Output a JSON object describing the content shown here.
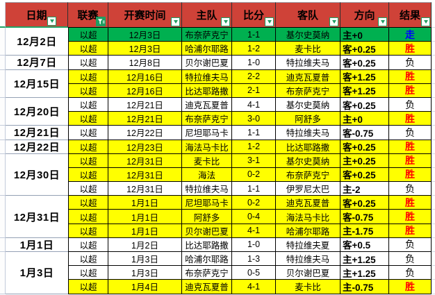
{
  "colors": {
    "header_bg": "#cf4238",
    "header_text": "#000000",
    "header_underline": "#21a366",
    "row_green": "#00b050",
    "row_yellow": "#ffff00",
    "row_white": "#ffffff",
    "win_red": "#ff0000",
    "push_blue": "#0000ff",
    "lose_black": "#000000",
    "filter_green": "#1f9e62",
    "grid_black": "#000000",
    "date_sep": "#93a0b4",
    "gutter_line": "#c3cbda"
  },
  "icons": {
    "filter_dropdown": "green down-triangle in white box",
    "filter_funnel": "white funnel with lines on green box (active filter)"
  },
  "header": {
    "columns": [
      {
        "label": "日期",
        "filter": "dropdown"
      },
      {
        "label": "联赛",
        "filter": "funnel"
      },
      {
        "label": "开赛时间",
        "filter": "dropdown"
      },
      {
        "label": "主队",
        "filter": "dropdown"
      },
      {
        "label": "比分",
        "filter": "dropdown"
      },
      {
        "label": "客队",
        "filter": "dropdown"
      },
      {
        "label": "方向",
        "filter": "dropdown"
      },
      {
        "label": "结果",
        "filter": "dropdown"
      }
    ]
  },
  "date_groups": [
    {
      "date": "12月2日",
      "span": 2
    },
    {
      "date": "12月7日",
      "span": 1
    },
    {
      "date": "12月15日",
      "span": 2
    },
    {
      "date": "12月20日",
      "span": 2
    },
    {
      "date": "12月21日",
      "span": 1
    },
    {
      "date": "12月22日",
      "span": 1
    },
    {
      "date": "12月30日",
      "span": 3
    },
    {
      "date": "12月31日",
      "span": 3
    },
    {
      "date": "1月1日",
      "span": 1
    },
    {
      "date": "1月3日",
      "span": 3
    }
  ],
  "rows": [
    {
      "bg": "green",
      "league": "以超",
      "time": "12月3日",
      "home": "布奈萨克宁",
      "score": "1-1",
      "away": "基尔史莫纳",
      "direction": "主+0",
      "result": "走",
      "result_type": "push"
    },
    {
      "bg": "yellow",
      "league": "以超",
      "time": "12月3日",
      "home": "哈浦尔耶路",
      "score": "1-2",
      "away": "麦卡比",
      "direction": "客+0.25",
      "result": "胜",
      "result_type": "win"
    },
    {
      "bg": "white",
      "league": "以超",
      "time": "12月8日",
      "home": "贝尔谢巴夏",
      "score": "1-0",
      "away": "特拉维夫马",
      "direction": "客+0.25",
      "result": "负",
      "result_type": "lose"
    },
    {
      "bg": "yellow",
      "league": "以超",
      "time": "12月16日",
      "home": "特拉维夫马",
      "score": "2-2",
      "away": "迪克瓦夏普",
      "direction": "客+1.25",
      "result": "胜",
      "result_type": "win"
    },
    {
      "bg": "yellow",
      "league": "以超",
      "time": "12月16日",
      "home": "比达耶路撒",
      "score": "2-1",
      "away": "布奈萨克宁",
      "direction": "客+1.25",
      "result": "胜",
      "result_type": "win"
    },
    {
      "bg": "white",
      "league": "以超",
      "time": "12月21日",
      "home": "迪克瓦夏普",
      "score": "4-1",
      "away": "基尔史莫纳",
      "direction": "客+0.25",
      "result": "负",
      "result_type": "lose"
    },
    {
      "bg": "yellow",
      "league": "以超",
      "time": "12月21日",
      "home": "布奈萨克宁",
      "score": "3-0",
      "away": "阿舒多",
      "direction": "主+0",
      "result": "胜",
      "result_type": "win"
    },
    {
      "bg": "white",
      "league": "以超",
      "time": "12月22日",
      "home": "尼坦耶马卡",
      "score": "1-1",
      "away": "特拉维夫马",
      "direction": "客-0.75",
      "result": "负",
      "result_type": "lose"
    },
    {
      "bg": "yellow",
      "league": "以超",
      "time": "12月23日",
      "home": "海法马卡比",
      "score": "1-2",
      "away": "比达耶路撒",
      "direction": "客+0.25",
      "result": "胜",
      "result_type": "win"
    },
    {
      "bg": "yellow",
      "league": "以超",
      "time": "12月31日",
      "home": "麦卡比",
      "score": "3-1",
      "away": "基尔史莫纳",
      "direction": "主+0.25",
      "result": "胜",
      "result_type": "win"
    },
    {
      "bg": "yellow",
      "league": "以超",
      "time": "12月31日",
      "home": "海法",
      "score": "0-2",
      "away": "布奈萨克宁",
      "direction": "客+0.25",
      "result": "胜",
      "result_type": "win"
    },
    {
      "bg": "white",
      "league": "以超",
      "time": "12月31日",
      "home": "特拉维夫马",
      "score": "1-1",
      "away": "伊罗尼太巴",
      "direction": "主-2",
      "result": "负",
      "result_type": "lose"
    },
    {
      "bg": "yellow",
      "league": "以超",
      "time": "1月1日",
      "home": "尼坦耶马卡",
      "score": "0-2",
      "away": "迪克瓦夏普",
      "direction": "客+0.25",
      "result": "胜",
      "result_type": "win"
    },
    {
      "bg": "yellow",
      "league": "以超",
      "time": "1月1日",
      "home": "阿舒多",
      "score": "0-4",
      "away": "海法马卡比",
      "direction": "客-0.75",
      "result": "胜",
      "result_type": "win"
    },
    {
      "bg": "yellow",
      "league": "以超",
      "time": "1月1日",
      "home": "贝尔谢巴夏",
      "score": "4-1",
      "away": "哈浦尔耶路",
      "direction": "主-1.75",
      "result": "胜",
      "result_type": "win"
    },
    {
      "bg": "white",
      "league": "以超",
      "time": "1月2日",
      "home": "比达耶路撒",
      "score": "1-0",
      "away": "特拉维夫夏",
      "direction": "客+0.5",
      "result": "负",
      "result_type": "lose"
    },
    {
      "bg": "white",
      "league": "以超",
      "time": "1月3日",
      "home": "哈浦尔耶路",
      "score": "1-3",
      "away": "特拉维夫马",
      "direction": "主+1.25",
      "result": "负",
      "result_type": "lose"
    },
    {
      "bg": "white",
      "league": "以超",
      "time": "1月3日",
      "home": "布奈萨克宁",
      "score": "0-5",
      "away": "贝尔谢巴夏",
      "direction": "主+1.25",
      "result": "负",
      "result_type": "lose"
    },
    {
      "bg": "yellow",
      "league": "以超",
      "time": "1月4日",
      "home": "迪克瓦夏普",
      "score": "4-1",
      "away": "麦卡比",
      "direction": "主-0.75",
      "result": "胜",
      "result_type": "win"
    }
  ]
}
